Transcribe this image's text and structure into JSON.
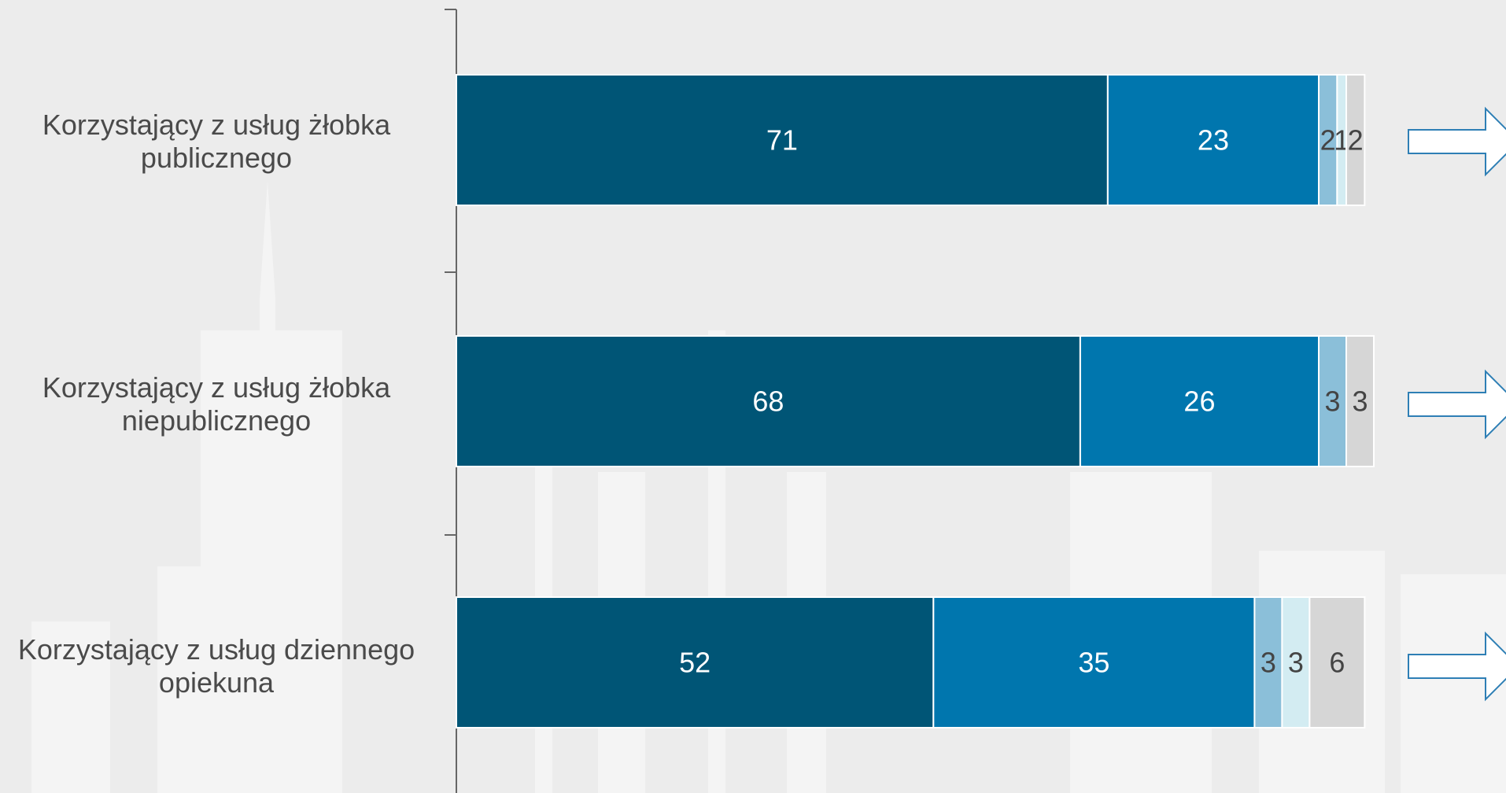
{
  "chart_data": {
    "type": "stacked_bar_horizontal",
    "categories": [
      "Korzystający z usług żłobka publicznego",
      "Korzystający z usług żłobka niepublicznego",
      "Korzystający z usług dziennego opiekuna"
    ],
    "series": [
      {
        "color": "#005576",
        "values": [
          71,
          68,
          52
        ]
      },
      {
        "color": "#0076ae",
        "values": [
          23,
          26,
          35
        ]
      },
      {
        "color": "#8bbfd9",
        "values": [
          2,
          3,
          3
        ]
      },
      {
        "color": "#d3ecf2",
        "values": [
          1,
          null,
          3
        ]
      },
      {
        "color": "#d6d6d6",
        "values": [
          2,
          3,
          6
        ]
      }
    ],
    "xlim": [
      0,
      100
    ]
  }
}
